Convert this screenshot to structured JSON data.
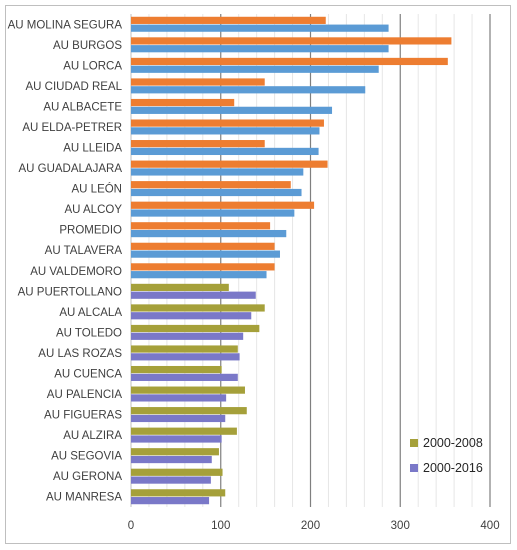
{
  "chart_data": {
    "type": "bar",
    "orientation": "horizontal",
    "categories": [
      "AU MOLINA SEGURA",
      "AU BURGOS",
      "AU LORCA",
      "AU CIUDAD REAL",
      "AU ALBACETE",
      "AU ELDA-PETRER",
      "AU LLEIDA",
      "AU GUADALAJARA",
      "AU LEÓN",
      "AU ALCOY",
      "PROMEDIO",
      "AU TALAVERA",
      "AU VALDEMORO",
      "AU PUERTOLLANO",
      "AU ALCALA",
      "AU TOLEDO",
      "AU LAS ROZAS",
      "AU CUENCA",
      "AU PALENCIA",
      "AU FIGUERAS",
      "AU ALZIRA",
      "AU SEGOVIA",
      "AU GERONA",
      "AU MANRESA"
    ],
    "series": [
      {
        "name": "2000-2008",
        "values": [
          217,
          357,
          353,
          149,
          115,
          215,
          149,
          219,
          178,
          204,
          155,
          160,
          160,
          109,
          149,
          143,
          119,
          101,
          127,
          129,
          118,
          98,
          102,
          105
        ]
      },
      {
        "name": "2000-2016",
        "values": [
          287,
          287,
          276,
          261,
          224,
          210,
          209,
          192,
          190,
          182,
          173,
          166,
          151,
          139,
          134,
          125,
          121,
          119,
          106,
          105,
          101,
          90,
          89,
          87
        ]
      }
    ],
    "colors_top_group": [
      "#ED7D31",
      "#5B9BD5"
    ],
    "colors_bottom_group": [
      "#A5A03A",
      "#7A78C8"
    ],
    "xlim": [
      0,
      400
    ],
    "xticks": [
      0,
      100,
      200,
      300,
      400
    ],
    "grid": "vertical",
    "legend_placement": "bottom-right"
  }
}
